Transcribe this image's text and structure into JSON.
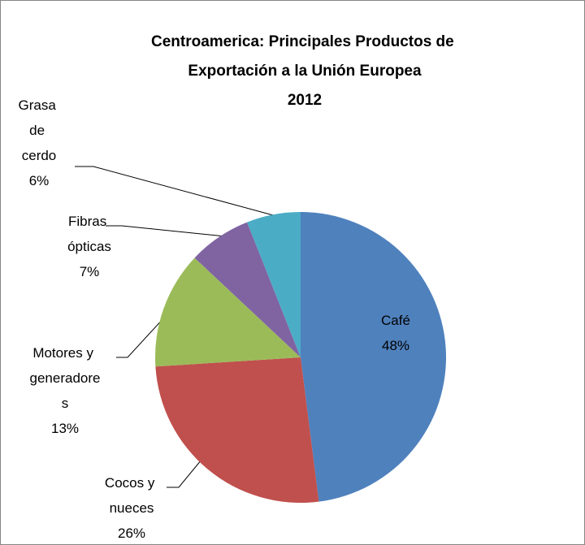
{
  "chart_data": {
    "type": "pie",
    "title": "Centroamerica: Principales Productos de Exportación a la Unión Europea",
    "subtitle": "2012",
    "categories": [
      "Café",
      "Cocos y nueces",
      "Motores y generadores",
      "Fibras ópticas",
      "Grasa de cerdo"
    ],
    "values": [
      48,
      26,
      13,
      7,
      6
    ],
    "value_labels": [
      "48%",
      "26%",
      "13%",
      "7%",
      "6%"
    ],
    "colors": [
      "#4f81bd",
      "#c0504d",
      "#9bbb59",
      "#8064a2",
      "#4bacc6"
    ]
  }
}
